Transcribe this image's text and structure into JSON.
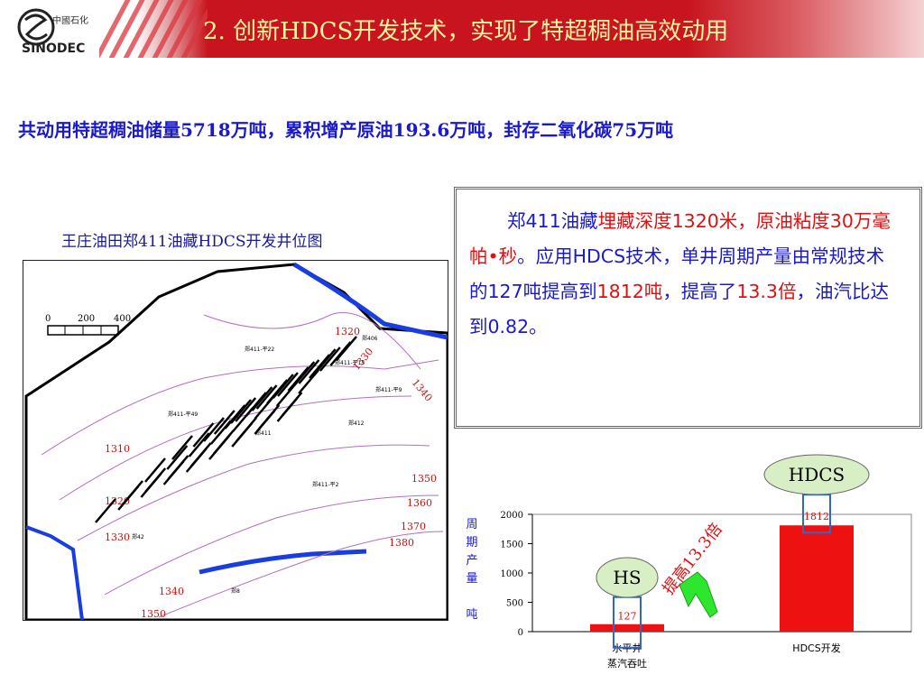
{
  "header": {
    "title": "2. 创新HDCS开发技术，实现了特超稠油高效动用",
    "logo_text": "SINODEC"
  },
  "summary": "共动用特超稠油储量5718万吨，累积增产原油193.6万吨，封存二氧化碳75万吨",
  "map": {
    "title": "王庄油田郑411油藏HDCS开发井位图",
    "scale_labels": [
      "0",
      "200",
      "400"
    ],
    "contours": [
      "1310",
      "1320",
      "1330",
      "1340",
      "1350",
      "1320",
      "1330",
      "1340",
      "1350",
      "1360",
      "1370",
      "1380"
    ],
    "well_labels": [
      "郑411-平49",
      "郑411-平22",
      "郑411",
      "郑406",
      "郑412",
      "郑42",
      "郑8",
      "郑411-平15",
      "郑411-平9",
      "郑411-平2"
    ]
  },
  "description": {
    "seg1": "郑411油藏",
    "seg2": "埋藏深度1320米，原油粘度30万毫帕•秒",
    "seg3": "。应用HDCS技术，单井周期产量由常规技术的127吨提高到",
    "seg4": "1812吨",
    "seg5": "，提高了",
    "seg6": "13.3倍",
    "seg7": "，油汽比达到0.82。"
  },
  "chart_data": {
    "type": "bar",
    "categories": [
      "水平井\n蒸汽吞吐",
      "HDCS开发"
    ],
    "values": [
      127,
      1812
    ],
    "ylabel": "周期产量  吨",
    "ylim": [
      0,
      2000
    ],
    "yticks": [
      0,
      500,
      1000,
      1500,
      2000
    ],
    "bar_color": "#ee1111",
    "bubbles": [
      "HS",
      "HDCS"
    ],
    "annotation": "提高13.3倍"
  }
}
